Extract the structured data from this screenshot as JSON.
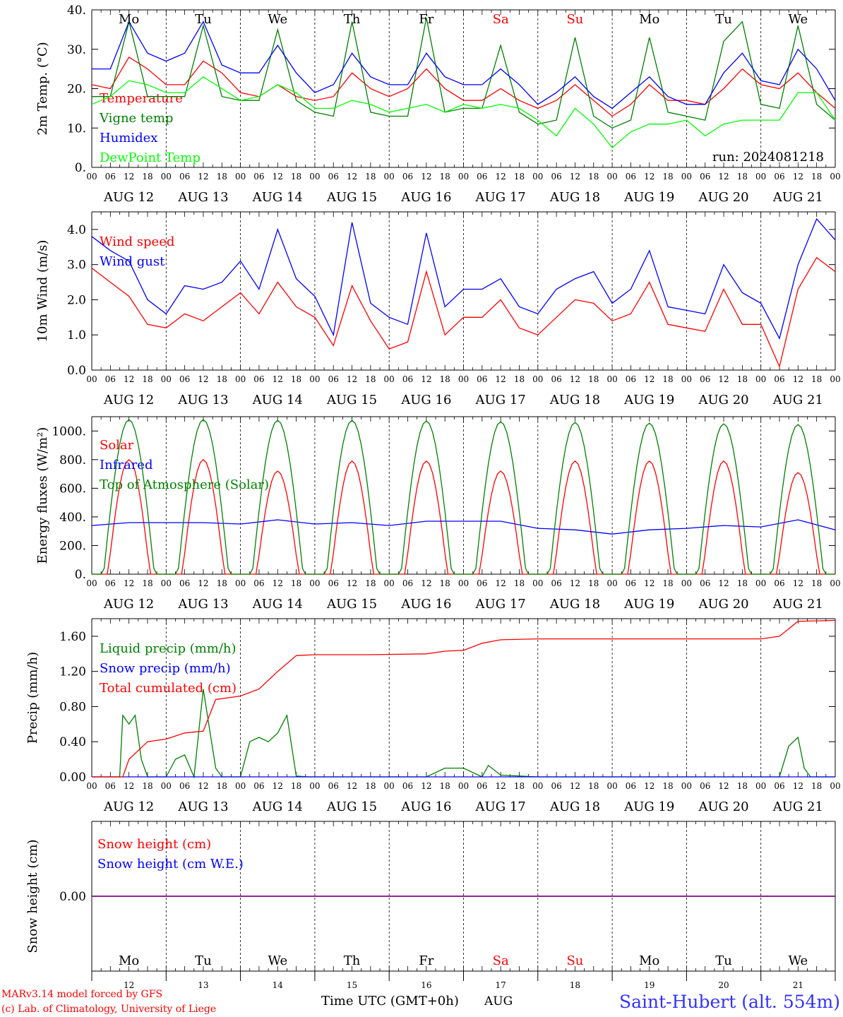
{
  "chart_data": [
    {
      "type": "line",
      "ylabel": "2m Temp. (°C)",
      "ylim": [
        0,
        40
      ],
      "yticks": [
        "0.",
        "10.",
        "20.",
        "30.",
        "40."
      ],
      "yticks_values": [
        0,
        10,
        20,
        30,
        40
      ],
      "x_unit": "hours since Aug 12 00 UTC",
      "legend_placement": "left",
      "annotation": "run: 2024081218",
      "series": [
        {
          "name": "Temperature",
          "color": "#ff0000",
          "x": [
            0,
            6,
            12,
            18,
            24,
            30,
            36,
            42,
            48,
            54,
            60,
            66,
            72,
            78,
            84,
            90,
            96,
            102,
            108,
            114,
            120,
            126,
            132,
            138,
            144,
            150,
            156,
            162,
            168,
            174,
            180,
            186,
            192,
            198,
            204,
            210,
            216,
            222,
            228,
            234,
            240
          ],
          "values": [
            21,
            20,
            28,
            25,
            21,
            21,
            27,
            24,
            19,
            18,
            21,
            18,
            17,
            18,
            24,
            20,
            18,
            20,
            25,
            20,
            17,
            17,
            20,
            17,
            15,
            17,
            21,
            17,
            13,
            16,
            21,
            17,
            17,
            16,
            20,
            25,
            21,
            20,
            24,
            19,
            15
          ]
        },
        {
          "name": "Vigne temp",
          "color": "#008000",
          "x": [
            0,
            6,
            12,
            18,
            24,
            30,
            36,
            42,
            48,
            54,
            60,
            66,
            72,
            78,
            84,
            90,
            96,
            102,
            108,
            114,
            120,
            126,
            132,
            138,
            144,
            150,
            156,
            162,
            168,
            174,
            180,
            186,
            192,
            198,
            204,
            210,
            216,
            222,
            228,
            234,
            240
          ],
          "values": [
            18,
            18,
            37,
            18,
            18,
            18,
            36,
            18,
            17,
            17,
            35,
            17,
            14,
            13,
            37,
            14,
            13,
            13,
            38,
            14,
            15,
            15,
            31,
            14,
            11,
            12,
            33,
            13,
            10,
            12,
            33,
            14,
            13,
            12,
            32,
            37,
            16,
            15,
            36,
            16,
            12
          ]
        },
        {
          "name": "Humidex",
          "color": "#0000ff",
          "x": [
            0,
            6,
            12,
            18,
            24,
            30,
            36,
            42,
            48,
            54,
            60,
            66,
            72,
            78,
            84,
            90,
            96,
            102,
            108,
            114,
            120,
            126,
            132,
            138,
            144,
            150,
            156,
            162,
            168,
            174,
            180,
            186,
            192,
            198,
            204,
            210,
            216,
            222,
            228,
            234,
            240
          ],
          "values": [
            25,
            25,
            37,
            29,
            27,
            29,
            37,
            26,
            24,
            24,
            31,
            24,
            19,
            21,
            29,
            23,
            21,
            21,
            29,
            23,
            21,
            21,
            25,
            21,
            16,
            19,
            23,
            18,
            15,
            19,
            23,
            18,
            16,
            16,
            24,
            29,
            22,
            21,
            30,
            25,
            17
          ]
        },
        {
          "name": "DewPoint Temp",
          "color": "#00ff00",
          "x": [
            0,
            6,
            12,
            18,
            24,
            30,
            36,
            42,
            48,
            54,
            60,
            66,
            72,
            78,
            84,
            90,
            96,
            102,
            108,
            114,
            120,
            126,
            132,
            138,
            144,
            150,
            156,
            162,
            168,
            174,
            180,
            186,
            192,
            198,
            204,
            210,
            216,
            222,
            228,
            234,
            240
          ],
          "values": [
            16,
            18,
            22,
            21,
            19,
            19,
            23,
            20,
            17,
            18,
            21,
            19,
            15,
            15,
            17,
            16,
            14,
            15,
            16,
            14,
            16,
            15,
            16,
            15,
            12,
            8,
            15,
            11,
            5,
            9,
            11,
            11,
            12,
            8,
            11,
            12,
            12,
            12,
            19,
            19,
            12
          ]
        }
      ]
    },
    {
      "type": "line",
      "ylabel": "10m Wind (m/s)",
      "ylim": [
        0,
        4.5
      ],
      "yticks": [
        "0.0",
        "1.0",
        "2.0",
        "3.0",
        "4.0"
      ],
      "yticks_values": [
        0,
        1,
        2,
        3,
        4
      ],
      "x_unit": "hours since Aug 12 00 UTC",
      "legend_placement": "left",
      "series": [
        {
          "name": "Wind speed",
          "color": "#ff0000",
          "x": [
            0,
            6,
            12,
            18,
            24,
            30,
            36,
            42,
            48,
            54,
            60,
            66,
            72,
            78,
            84,
            90,
            96,
            102,
            108,
            114,
            120,
            126,
            132,
            138,
            144,
            150,
            156,
            162,
            168,
            174,
            180,
            186,
            192,
            198,
            204,
            210,
            216,
            222,
            228,
            234,
            240
          ],
          "values": [
            2.9,
            2.5,
            2.1,
            1.3,
            1.2,
            1.6,
            1.4,
            1.8,
            2.2,
            1.6,
            2.5,
            1.8,
            1.5,
            0.7,
            2.4,
            1.4,
            0.6,
            0.8,
            2.8,
            1.0,
            1.5,
            1.5,
            2.0,
            1.2,
            1.0,
            1.5,
            2.0,
            1.9,
            1.4,
            1.6,
            2.5,
            1.3,
            1.2,
            1.1,
            2.3,
            1.3,
            1.3,
            0.1,
            2.3,
            3.2,
            2.8
          ]
        },
        {
          "name": "Wind gust",
          "color": "#0000ff",
          "x": [
            0,
            6,
            12,
            18,
            24,
            30,
            36,
            42,
            48,
            54,
            60,
            66,
            72,
            78,
            84,
            90,
            96,
            102,
            108,
            114,
            120,
            126,
            132,
            138,
            144,
            150,
            156,
            162,
            168,
            174,
            180,
            186,
            192,
            198,
            204,
            210,
            216,
            222,
            228,
            234,
            240
          ],
          "values": [
            3.8,
            3.4,
            3.1,
            2.0,
            1.6,
            2.4,
            2.3,
            2.5,
            3.1,
            2.3,
            4.0,
            2.6,
            2.1,
            1.0,
            4.2,
            1.9,
            1.5,
            1.3,
            3.9,
            1.8,
            2.3,
            2.3,
            2.6,
            1.8,
            1.6,
            2.3,
            2.6,
            2.8,
            1.9,
            2.3,
            3.4,
            1.8,
            1.7,
            1.6,
            3.0,
            2.2,
            1.9,
            0.9,
            3.0,
            4.3,
            3.7
          ]
        }
      ]
    },
    {
      "type": "line",
      "ylabel": "Energy fluxes (W/m²)",
      "ylim": [
        0,
        1100
      ],
      "yticks": [
        "0.",
        "200.",
        "400.",
        "600.",
        "800.",
        "1000."
      ],
      "yticks_values": [
        0,
        200,
        400,
        600,
        800,
        1000
      ],
      "x_unit": "hours since Aug 12 00 UTC",
      "legend_placement": "left",
      "series": [
        {
          "name": "Solar",
          "color": "#ff0000",
          "daily_peak_at_12utc": [
            800,
            800,
            720,
            790,
            790,
            720,
            790,
            790,
            790,
            710
          ]
        },
        {
          "name": "Infrared",
          "color": "#0000ff",
          "x": [
            0,
            12,
            24,
            36,
            48,
            60,
            72,
            84,
            96,
            108,
            120,
            132,
            144,
            156,
            168,
            180,
            192,
            204,
            216,
            228,
            240
          ],
          "values": [
            340,
            360,
            360,
            360,
            350,
            380,
            350,
            360,
            340,
            370,
            370,
            370,
            320,
            310,
            280,
            310,
            320,
            340,
            330,
            380,
            310
          ]
        },
        {
          "name": "Top of Atmosphere (Solar)",
          "color": "#008000",
          "daily_peak_at_12utc": [
            1080,
            1080,
            1075,
            1075,
            1070,
            1065,
            1060,
            1055,
            1050,
            1045
          ]
        }
      ]
    },
    {
      "type": "line",
      "ylabel": "Precip (mm/h)",
      "ylim": [
        0,
        1.8
      ],
      "yticks": [
        "0.00",
        "0.40",
        "0.80",
        "1.20",
        "1.60"
      ],
      "yticks_values": [
        0,
        0.4,
        0.8,
        1.2,
        1.6
      ],
      "x_unit": "hours since Aug 12 00 UTC",
      "legend_placement": "left",
      "series": [
        {
          "name": "Liquid precip (mm/h)",
          "color": "#008000",
          "x": [
            0,
            9,
            10,
            12,
            14,
            16,
            18,
            20,
            24,
            27,
            30,
            33,
            36,
            40,
            42,
            45,
            48,
            51,
            54,
            57,
            60,
            63,
            66,
            70,
            72,
            90,
            108,
            114,
            120,
            126,
            128,
            132,
            144,
            156,
            192,
            216,
            222,
            225,
            228,
            230,
            232,
            240
          ],
          "values": [
            0,
            0,
            0.7,
            0.6,
            0.7,
            0.2,
            0,
            0,
            0,
            0.2,
            0.25,
            0,
            1.0,
            0.1,
            0,
            0,
            0,
            0.4,
            0.45,
            0.4,
            0.5,
            0.7,
            0.01,
            0,
            0,
            0,
            0,
            0.1,
            0.1,
            0,
            0.13,
            0.02,
            0,
            0,
            0,
            0,
            0,
            0.35,
            0.45,
            0.1,
            0,
            0
          ]
        },
        {
          "name": "Snow precip (mm/h)",
          "color": "#0000ff",
          "x": [
            0,
            240
          ],
          "values": [
            0,
            0
          ]
        },
        {
          "name": "Total cumulated (cm)",
          "color": "#ff0000",
          "x": [
            0,
            10,
            12,
            18,
            24,
            30,
            36,
            40,
            48,
            54,
            60,
            66,
            72,
            90,
            108,
            114,
            120,
            126,
            132,
            144,
            156,
            168,
            180,
            192,
            204,
            216,
            222,
            228,
            240
          ],
          "values": [
            0,
            0,
            0.2,
            0.4,
            0.43,
            0.5,
            0.52,
            0.88,
            0.92,
            1.0,
            1.2,
            1.38,
            1.39,
            1.39,
            1.4,
            1.43,
            1.44,
            1.52,
            1.56,
            1.57,
            1.57,
            1.57,
            1.57,
            1.57,
            1.57,
            1.57,
            1.6,
            1.77,
            1.78
          ]
        }
      ]
    },
    {
      "type": "line",
      "ylabel": "Snow height (cm)",
      "ylim": [
        -1,
        1
      ],
      "yticks": [
        "0.00"
      ],
      "yticks_values": [
        0
      ],
      "x_unit": "hours since Aug 12 00 UTC",
      "legend_placement": "left",
      "series": [
        {
          "name": "Snow height (cm)",
          "color": "#ff0000",
          "x": [
            0,
            240
          ],
          "values": [
            0,
            0
          ]
        },
        {
          "name": "Snow height (cm W.E.)",
          "color": "#0000ff",
          "x": [
            0,
            240
          ],
          "values": [
            0,
            0
          ]
        }
      ]
    }
  ],
  "hour_labels": [
    "00",
    "06",
    "12",
    "18"
  ],
  "last_hour_label": "00",
  "date_labels": [
    "AUG 12",
    "AUG 13",
    "AUG 14",
    "AUG 15",
    "AUG 16",
    "AUG 17",
    "AUG 18",
    "AUG 19",
    "AUG 20",
    "AUG 21"
  ],
  "weekday_labels": [
    "Mo",
    "Tu",
    "We",
    "Th",
    "Fr",
    "Sa",
    "Su",
    "Mo",
    "Tu",
    "We"
  ],
  "weekend_flags": [
    false,
    false,
    false,
    false,
    false,
    true,
    true,
    false,
    false,
    false
  ],
  "day_numbers": [
    "12",
    "13",
    "14",
    "15",
    "16",
    "17",
    "18",
    "19",
    "20",
    "21"
  ],
  "colors": {
    "weekday": "#000000",
    "weekend": "#ff0000",
    "footer_left": "#ff0000",
    "station": "#3333ff"
  },
  "footer": {
    "model_line": "MARv3.14 model forced by GFS",
    "credit_line": "(c) Lab. of Climatology, University of Liege",
    "time_axis_label": "Time UTC (GMT+0h)",
    "month_label": "AUG",
    "station": "Saint-Hubert (alt. 554m)"
  }
}
